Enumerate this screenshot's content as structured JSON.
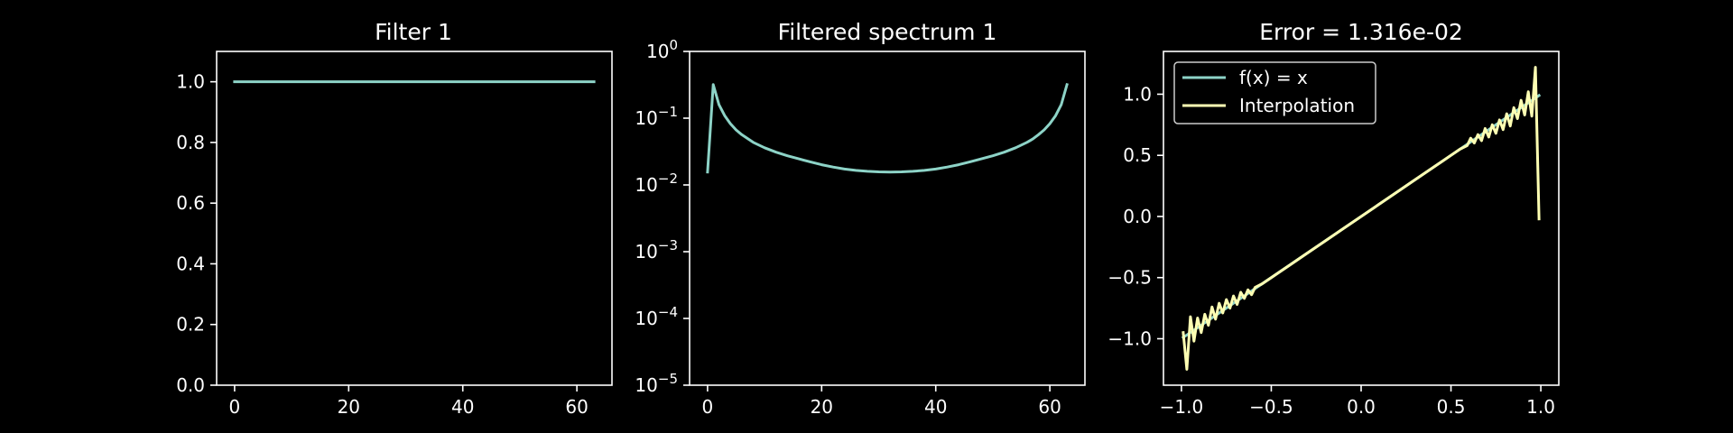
{
  "colors": {
    "background": "#000000",
    "axes": "#ffffff",
    "series_teal": "#8dd3c7",
    "series_yellow": "#feffb3"
  },
  "chart_data": [
    {
      "type": "line",
      "title": "Filter 1",
      "xlabel": "",
      "ylabel": "",
      "xlim": [
        -3.15,
        66.15
      ],
      "ylim": [
        0,
        1.1
      ],
      "yscale": "linear",
      "xticks": [
        0,
        20,
        40,
        60
      ],
      "xtick_labels": [
        "0",
        "20",
        "40",
        "60"
      ],
      "yticks": [
        0,
        0.2,
        0.4,
        0.6,
        0.8,
        1.0
      ],
      "ytick_labels": [
        "0.0",
        "0.2",
        "0.4",
        "0.6",
        "0.8",
        "1.0"
      ],
      "grid": false,
      "series": [
        {
          "color": "#8dd3c7",
          "x": [
            0,
            63
          ],
          "y": [
            1.0,
            1.0
          ]
        }
      ]
    },
    {
      "type": "line",
      "title": "Filtered spectrum 1",
      "xlabel": "",
      "ylabel": "",
      "xlim": [
        -3.15,
        66.15
      ],
      "ylim": [
        1e-05,
        1
      ],
      "yscale": "log",
      "xticks": [
        0,
        20,
        40,
        60
      ],
      "xtick_labels": [
        "0",
        "20",
        "40",
        "60"
      ],
      "yticks": [
        1e-05,
        0.0001,
        0.001,
        0.01,
        0.1,
        1
      ],
      "ytick_exponents": [
        "-5",
        "-4",
        "-3",
        "-2",
        "-1",
        "0"
      ],
      "ytick_base": "10",
      "grid": false,
      "series": [
        {
          "color": "#8dd3c7",
          "x": [
            0,
            1,
            2,
            3,
            4,
            5,
            6,
            8,
            10,
            12,
            14,
            16,
            18,
            20,
            22,
            24,
            26,
            28,
            30,
            32,
            34,
            36,
            38,
            40,
            42,
            44,
            46,
            48,
            50,
            52,
            54,
            56,
            57,
            58,
            59,
            60,
            61,
            62,
            63
          ],
          "y": [
            0.0156,
            0.318,
            0.16,
            0.109,
            0.0826,
            0.0668,
            0.0566,
            0.0435,
            0.036,
            0.0309,
            0.0273,
            0.0246,
            0.0222,
            0.0201,
            0.0185,
            0.0173,
            0.0165,
            0.016,
            0.0157,
            0.0156,
            0.0157,
            0.016,
            0.0165,
            0.0173,
            0.0185,
            0.0201,
            0.0222,
            0.0246,
            0.0273,
            0.0309,
            0.036,
            0.0435,
            0.0488,
            0.0566,
            0.0668,
            0.0826,
            0.109,
            0.16,
            0.318
          ]
        }
      ]
    },
    {
      "type": "line",
      "title": "Error = 1.316e-02",
      "xlabel": "",
      "ylabel": "",
      "xlim": [
        -1.1,
        1.1
      ],
      "ylim": [
        -1.38,
        1.35
      ],
      "yscale": "linear",
      "xticks": [
        -1.0,
        -0.5,
        0.0,
        0.5,
        1.0
      ],
      "xtick_labels": [
        "−1.0",
        "−0.5",
        "0.0",
        "0.5",
        "1.0"
      ],
      "yticks": [
        -1.0,
        -0.5,
        0.0,
        0.5,
        1.0
      ],
      "ytick_labels": [
        "−1.0",
        "−0.5",
        "0.0",
        "0.5",
        "1.0"
      ],
      "grid": false,
      "legend_position": "upper-left",
      "series": [
        {
          "name": "f(x) = x",
          "color": "#8dd3c7",
          "x": [
            -0.99,
            0.99
          ],
          "y": [
            -0.99,
            0.99
          ]
        },
        {
          "name": "Interpolation",
          "color": "#feffb3",
          "x": [
            -0.99,
            -0.97,
            -0.95,
            -0.93,
            -0.91,
            -0.89,
            -0.87,
            -0.85,
            -0.83,
            -0.81,
            -0.79,
            -0.77,
            -0.75,
            -0.73,
            -0.71,
            -0.69,
            -0.67,
            -0.65,
            -0.63,
            -0.61,
            -0.59,
            -0.55,
            -0.5,
            -0.45,
            -0.4,
            -0.3,
            -0.2,
            -0.1,
            0.0,
            0.1,
            0.2,
            0.3,
            0.4,
            0.45,
            0.5,
            0.55,
            0.59,
            0.61,
            0.63,
            0.65,
            0.67,
            0.69,
            0.71,
            0.73,
            0.75,
            0.77,
            0.79,
            0.81,
            0.83,
            0.85,
            0.87,
            0.89,
            0.91,
            0.93,
            0.95,
            0.97,
            0.99
          ],
          "y": [
            -0.95,
            -1.25,
            -0.82,
            -1.02,
            -0.83,
            -0.95,
            -0.8,
            -0.89,
            -0.74,
            -0.84,
            -0.71,
            -0.79,
            -0.68,
            -0.75,
            -0.65,
            -0.72,
            -0.62,
            -0.67,
            -0.6,
            -0.64,
            -0.58,
            -0.55,
            -0.5,
            -0.45,
            -0.4,
            -0.3,
            -0.2,
            -0.1,
            0.0,
            0.1,
            0.2,
            0.3,
            0.4,
            0.45,
            0.5,
            0.55,
            0.58,
            0.64,
            0.6,
            0.67,
            0.62,
            0.72,
            0.65,
            0.75,
            0.68,
            0.79,
            0.71,
            0.84,
            0.74,
            0.89,
            0.8,
            0.95,
            0.83,
            1.02,
            0.82,
            1.22,
            -0.02
          ]
        }
      ]
    }
  ]
}
